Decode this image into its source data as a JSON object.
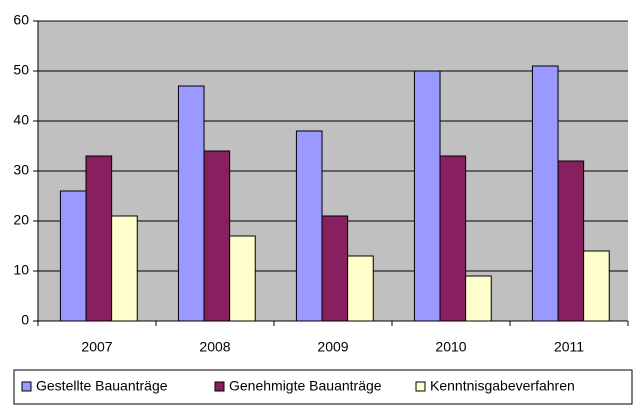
{
  "chart_data": {
    "type": "bar",
    "categories": [
      "2007",
      "2008",
      "2009",
      "2010",
      "2011"
    ],
    "series": [
      {
        "name": "Gestellte Bauanträge",
        "color": "#9999ff",
        "values": [
          26,
          47,
          38,
          50,
          51
        ]
      },
      {
        "name": "Genehmigte Bauanträge",
        "color": "#882060",
        "values": [
          33,
          34,
          21,
          33,
          32
        ]
      },
      {
        "name": "Kenntnisgabeverfahren",
        "color": "#ffffcc",
        "values": [
          21,
          17,
          13,
          9,
          14
        ]
      }
    ],
    "ylim": [
      0,
      60
    ],
    "yticks": [
      0,
      10,
      20,
      30,
      40,
      50,
      60
    ],
    "grid": true,
    "plot_background": "#c0c0c0",
    "legend": "bottom"
  }
}
